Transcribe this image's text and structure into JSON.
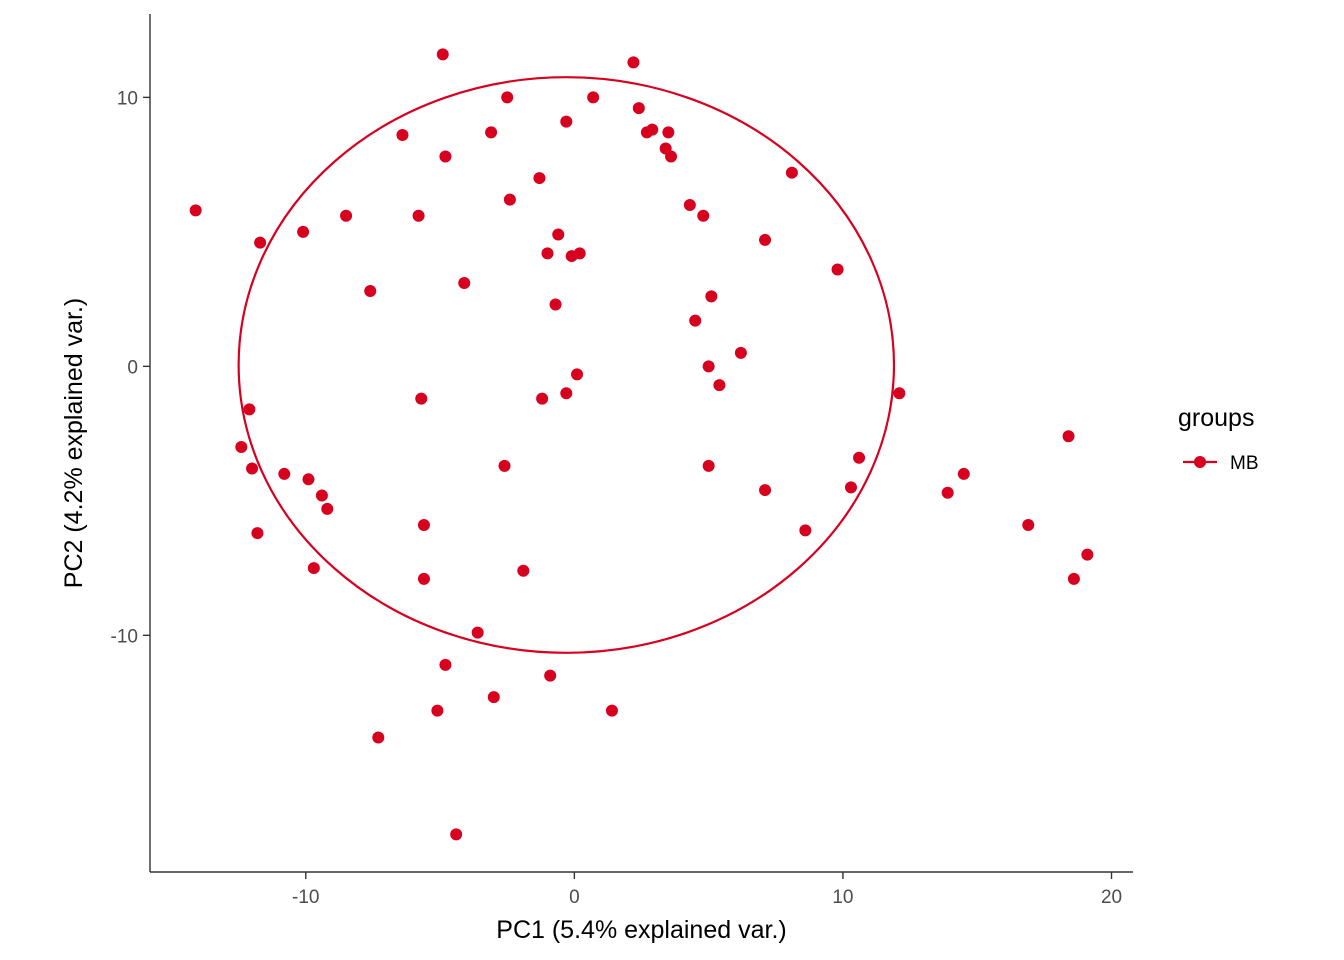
{
  "chart_data": {
    "type": "scatter",
    "xlabel": "PC1 (5.4% explained var.)",
    "ylabel": "PC2 (4.2% explained var.)",
    "xlim": [
      -15.8,
      20.8
    ],
    "ylim": [
      -18.8,
      13.1
    ],
    "x_ticks": [
      -10,
      0,
      10,
      20
    ],
    "y_ticks": [
      -10,
      0,
      10
    ],
    "x_tick_labels": [
      "-10",
      "0",
      "10",
      "20"
    ],
    "y_tick_labels": [
      "-10",
      "0",
      "10"
    ],
    "grid": false,
    "legend": {
      "title": "groups",
      "position": "right",
      "entries": [
        "MB"
      ]
    },
    "ellipse": {
      "center": [
        -0.3,
        0.05
      ],
      "rx": 12.2,
      "ry": 10.7,
      "color": "#d7001f"
    },
    "series": [
      {
        "name": "MB",
        "color": "#d7001f",
        "points": [
          [
            -4.9,
            11.6
          ],
          [
            2.2,
            11.3
          ],
          [
            -2.5,
            10.0
          ],
          [
            0.7,
            10.0
          ],
          [
            2.4,
            9.6
          ],
          [
            -0.3,
            9.1
          ],
          [
            2.9,
            8.8
          ],
          [
            2.7,
            8.7
          ],
          [
            3.5,
            8.7
          ],
          [
            -3.1,
            8.7
          ],
          [
            -6.4,
            8.6
          ],
          [
            3.4,
            8.1
          ],
          [
            3.6,
            7.8
          ],
          [
            -4.8,
            7.8
          ],
          [
            8.1,
            7.2
          ],
          [
            -1.3,
            7.0
          ],
          [
            -2.4,
            6.2
          ],
          [
            4.3,
            6.0
          ],
          [
            -14.1,
            5.8
          ],
          [
            -8.5,
            5.6
          ],
          [
            -5.8,
            5.6
          ],
          [
            4.8,
            5.6
          ],
          [
            -10.1,
            5.0
          ],
          [
            -0.6,
            4.9
          ],
          [
            7.1,
            4.7
          ],
          [
            -11.7,
            4.6
          ],
          [
            -1.0,
            4.2
          ],
          [
            -0.1,
            4.1
          ],
          [
            0.2,
            4.2
          ],
          [
            9.8,
            3.6
          ],
          [
            -4.1,
            3.1
          ],
          [
            -7.6,
            2.8
          ],
          [
            5.1,
            2.6
          ],
          [
            -0.7,
            2.3
          ],
          [
            4.5,
            1.7
          ],
          [
            6.2,
            0.5
          ],
          [
            5.0,
            0.0
          ],
          [
            0.1,
            -0.3
          ],
          [
            5.4,
            -0.7
          ],
          [
            -0.3,
            -1.0
          ],
          [
            12.1,
            -1.0
          ],
          [
            -1.2,
            -1.2
          ],
          [
            -5.7,
            -1.2
          ],
          [
            -12.1,
            -1.6
          ],
          [
            18.4,
            -2.6
          ],
          [
            -12.4,
            -3.0
          ],
          [
            10.6,
            -3.4
          ],
          [
            -2.6,
            -3.7
          ],
          [
            5.0,
            -3.7
          ],
          [
            -12.0,
            -3.8
          ],
          [
            -10.8,
            -4.0
          ],
          [
            14.5,
            -4.0
          ],
          [
            -9.9,
            -4.2
          ],
          [
            10.3,
            -4.5
          ],
          [
            7.1,
            -4.6
          ],
          [
            13.9,
            -4.7
          ],
          [
            -9.4,
            -4.8
          ],
          [
            -9.2,
            -5.3
          ],
          [
            -5.6,
            -5.9
          ],
          [
            16.9,
            -5.9
          ],
          [
            8.6,
            -6.1
          ],
          [
            -11.8,
            -6.2
          ],
          [
            19.1,
            -7.0
          ],
          [
            -9.7,
            -7.5
          ],
          [
            -1.9,
            -7.6
          ],
          [
            -5.6,
            -7.9
          ],
          [
            18.6,
            -7.9
          ],
          [
            -3.6,
            -9.9
          ],
          [
            -4.8,
            -11.1
          ],
          [
            -0.9,
            -11.5
          ],
          [
            -3.0,
            -12.3
          ],
          [
            -5.1,
            -12.8
          ],
          [
            1.4,
            -12.8
          ],
          [
            -7.3,
            -13.8
          ],
          [
            -4.4,
            -17.4
          ]
        ]
      }
    ]
  }
}
